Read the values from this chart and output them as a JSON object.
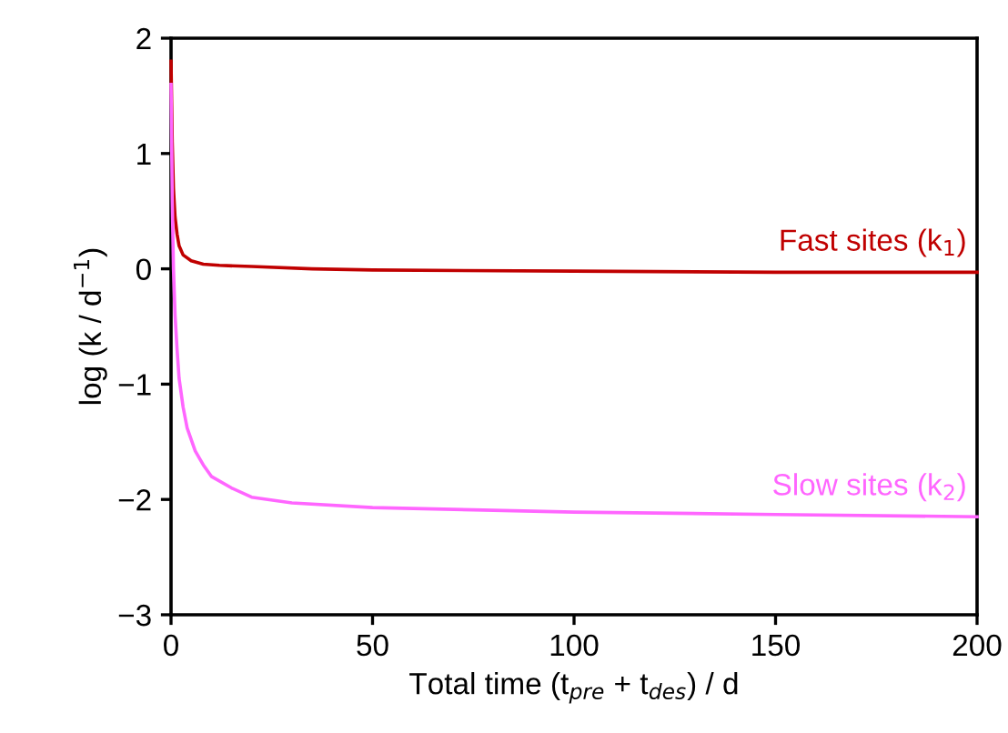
{
  "chart_data": {
    "type": "line",
    "xlabel": "Total time (t$_{pre}$ + t$_{des}$) / d",
    "ylabel": "log (k / d$^{−1}$)",
    "xlim": [
      0,
      200
    ],
    "xticks": [
      0,
      50,
      100,
      150,
      200
    ],
    "ylim": [
      -3,
      2
    ],
    "yticks": [
      {
        "value": -3,
        "label": "−3"
      },
      {
        "value": -2,
        "label": "−2"
      },
      {
        "value": -1,
        "label": "−1"
      },
      0,
      1,
      2
    ],
    "grid": false,
    "legend": false,
    "marker": "none",
    "line_style": "solid",
    "series": [
      {
        "name": "Fast sites (k$_{1}$)",
        "color": "#c00000",
        "x": [
          0,
          0.3,
          0.6,
          1,
          1.5,
          2,
          3,
          5,
          8,
          12,
          20,
          35,
          50,
          100,
          150,
          200
        ],
        "values": [
          1.8,
          1.1,
          0.7,
          0.45,
          0.3,
          0.2,
          0.12,
          0.07,
          0.04,
          0.03,
          0.02,
          0.0,
          -0.01,
          -0.02,
          -0.03,
          -0.03
        ]
      },
      {
        "name": "Slow sites (k$_{2}$)",
        "color": "#ff66ff",
        "x": [
          0,
          0.3,
          0.6,
          1,
          1.5,
          2,
          3,
          4,
          6,
          8,
          10,
          15,
          20,
          30,
          50,
          75,
          100,
          150,
          200
        ],
        "values": [
          1.6,
          0.6,
          0.0,
          -0.4,
          -0.7,
          -0.95,
          -1.2,
          -1.38,
          -1.58,
          -1.7,
          -1.8,
          -1.9,
          -1.98,
          -2.03,
          -2.07,
          -2.09,
          -2.11,
          -2.13,
          -2.15
        ]
      }
    ]
  }
}
